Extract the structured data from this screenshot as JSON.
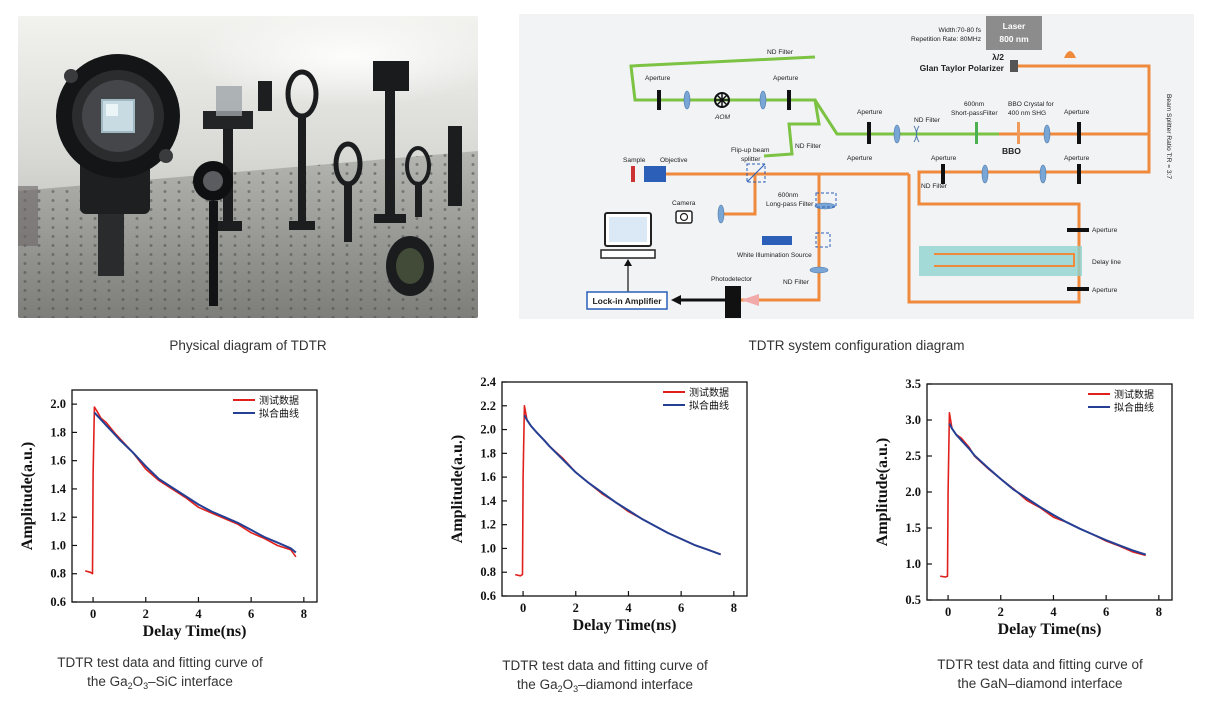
{
  "photo": {
    "caption": "Physical diagram of TDTR"
  },
  "schematic": {
    "caption": "TDTR system configuration diagram",
    "laser_title": "Laser",
    "laser_wavelength": "800 nm",
    "pulse_width": "Width:70-80 fs",
    "repetition_rate": "Repetition Rate:  80MHz",
    "half_wave": "λ/2",
    "glan_taylor": "Glan Taylor Polarizer",
    "beam_splitter_ratio": "Beam Splitter Ratio  T:R = 3:7",
    "nd_filter": "ND Filter",
    "aperture": "Aperture",
    "aom": "AOM",
    "short_pass_line1": "600nm",
    "short_pass_line2": "Short-passFilter",
    "bbo_crystal_line1": "BBO Crystal for",
    "bbo_crystal_line2": "400 nm SHG",
    "bbo": "BBO",
    "sample": "Sample",
    "objective": "Objective",
    "flip_up_line1": "Flip-up beam",
    "flip_up_line2": "splitter",
    "camera": "Camera",
    "long_pass_line1": "600nm",
    "long_pass_line2": "Long-pass Filter",
    "white_illumination": "White Illumination Source",
    "photodetector": "Photodetector",
    "lock_in": "Lock-in Amplifier",
    "delay_line": "Delay line"
  },
  "charts_text": [
    {
      "caption_line1": "TDTR test data and fitting curve of",
      "caption_pre": "the Ga",
      "caption_sub1": "2",
      "caption_mid": "O",
      "caption_sub2": "3",
      "caption_post": "–SiC interface"
    },
    {
      "caption_line1": "TDTR test data and fitting curve of",
      "caption_pre": "the Ga",
      "caption_sub1": "2",
      "caption_mid": "O",
      "caption_sub2": "3",
      "caption_post": "–diamond interface"
    },
    {
      "caption_line1": "TDTR test data and fitting curve of",
      "caption_line2": "the GaN–diamond interface"
    }
  ],
  "colors": {
    "measured": "#e0201c",
    "fitted": "#243f93",
    "pump_beam": "#7cc243",
    "probe_beam": "#ef8a3c",
    "delay_stage": "#8fd3cf"
  },
  "chart_data": [
    {
      "type": "line",
      "xlabel": "Delay Time(ns)",
      "ylabel": "Amplitude(a.u.)",
      "xlim": [
        -0.8,
        8.5
      ],
      "ylim": [
        0.6,
        2.1
      ],
      "xticks": [
        0,
        2,
        4,
        6,
        8
      ],
      "yticks": [
        0.6,
        0.8,
        1.0,
        1.2,
        1.4,
        1.6,
        1.8,
        2.0
      ],
      "ytick_labels": [
        "0.6",
        "0.8",
        "1.0",
        "1.2",
        "1.4",
        "1.6",
        "1.8",
        "2.0"
      ],
      "legend": "top-right",
      "series": [
        {
          "name": "测试数据",
          "x": [
            -0.3,
            -0.1,
            -0.02,
            0.0,
            0.05,
            0.15,
            0.3,
            0.5,
            0.8,
            1.0,
            1.5,
            2.0,
            2.5,
            3.0,
            3.5,
            4.0,
            4.5,
            5.0,
            5.5,
            6.0,
            6.5,
            7.0,
            7.5,
            7.7
          ],
          "y": [
            0.82,
            0.81,
            0.8,
            1.5,
            1.98,
            1.95,
            1.9,
            1.87,
            1.8,
            1.76,
            1.66,
            1.54,
            1.46,
            1.4,
            1.34,
            1.27,
            1.23,
            1.19,
            1.15,
            1.09,
            1.05,
            1.0,
            0.97,
            0.92
          ]
        },
        {
          "name": "拟合曲线",
          "x": [
            0.05,
            0.15,
            0.3,
            0.5,
            0.8,
            1.0,
            1.5,
            2.0,
            2.5,
            3.0,
            3.5,
            4.0,
            4.5,
            5.0,
            5.5,
            6.0,
            6.5,
            7.0,
            7.5,
            7.7
          ],
          "y": [
            1.94,
            1.92,
            1.89,
            1.85,
            1.79,
            1.75,
            1.66,
            1.56,
            1.47,
            1.41,
            1.35,
            1.29,
            1.24,
            1.2,
            1.16,
            1.11,
            1.06,
            1.02,
            0.98,
            0.95
          ]
        }
      ]
    },
    {
      "type": "line",
      "xlabel": "Delay Time(ns)",
      "ylabel": "Amplitude(a.u.)",
      "xlim": [
        -0.8,
        8.5
      ],
      "ylim": [
        0.6,
        2.4
      ],
      "xticks": [
        0,
        2,
        4,
        6,
        8
      ],
      "yticks": [
        0.6,
        0.8,
        1.0,
        1.2,
        1.4,
        1.6,
        1.8,
        2.0,
        2.2,
        2.4
      ],
      "ytick_labels": [
        "0.6",
        "0.8",
        "1.0",
        "1.2",
        "1.4",
        "1.6",
        "1.8",
        "2.0",
        "2.2",
        "2.4"
      ],
      "legend": "top-right",
      "series": [
        {
          "name": "测试数据",
          "x": [
            -0.3,
            -0.1,
            -0.02,
            0.0,
            0.05,
            0.15,
            0.3,
            0.5,
            0.8,
            1.0,
            1.5,
            2.0,
            2.5,
            3.0,
            3.5,
            4.0,
            4.5,
            5.0,
            5.5,
            6.0,
            6.5,
            7.0,
            7.5
          ],
          "y": [
            0.78,
            0.77,
            0.78,
            1.6,
            2.2,
            2.08,
            2.03,
            1.98,
            1.91,
            1.86,
            1.76,
            1.64,
            1.55,
            1.46,
            1.39,
            1.31,
            1.25,
            1.19,
            1.13,
            1.08,
            1.03,
            0.99,
            0.95
          ]
        },
        {
          "name": "拟合曲线",
          "x": [
            0.05,
            0.15,
            0.3,
            0.5,
            0.8,
            1.0,
            1.5,
            2.0,
            2.5,
            3.0,
            3.5,
            4.0,
            4.5,
            5.0,
            5.5,
            6.0,
            6.5,
            7.0,
            7.5
          ],
          "y": [
            2.12,
            2.08,
            2.03,
            1.98,
            1.91,
            1.86,
            1.75,
            1.64,
            1.55,
            1.47,
            1.39,
            1.32,
            1.25,
            1.19,
            1.13,
            1.08,
            1.03,
            0.99,
            0.95
          ]
        }
      ]
    },
    {
      "type": "line",
      "xlabel": "Delay Time(ns)",
      "ylabel": "Amplitude(a.u.)",
      "xlim": [
        -0.8,
        8.5
      ],
      "ylim": [
        0.5,
        3.5
      ],
      "xticks": [
        0,
        2,
        4,
        6,
        8
      ],
      "yticks": [
        0.5,
        1.0,
        1.5,
        2.0,
        2.5,
        3.0,
        3.5
      ],
      "ytick_labels": [
        "0.5",
        "1.0",
        "1.5",
        "2.0",
        "2.5",
        "3.0",
        "3.5"
      ],
      "legend": "top-right",
      "series": [
        {
          "name": "测试数据",
          "x": [
            -0.3,
            -0.1,
            -0.02,
            0.0,
            0.05,
            0.15,
            0.3,
            0.5,
            0.8,
            1.0,
            1.5,
            2.0,
            2.5,
            3.0,
            3.5,
            4.0,
            4.5,
            5.0,
            5.5,
            6.0,
            6.5,
            7.0,
            7.5
          ],
          "y": [
            0.83,
            0.82,
            0.83,
            2.0,
            3.1,
            2.88,
            2.8,
            2.75,
            2.62,
            2.5,
            2.33,
            2.18,
            2.04,
            1.88,
            1.78,
            1.65,
            1.58,
            1.49,
            1.41,
            1.32,
            1.25,
            1.17,
            1.12
          ]
        },
        {
          "name": "拟合曲线",
          "x": [
            0.05,
            0.15,
            0.3,
            0.5,
            0.8,
            1.0,
            1.5,
            2.0,
            2.5,
            3.0,
            3.5,
            4.0,
            4.5,
            5.0,
            5.5,
            6.0,
            6.5,
            7.0,
            7.5
          ],
          "y": [
            2.95,
            2.88,
            2.8,
            2.72,
            2.6,
            2.51,
            2.34,
            2.18,
            2.03,
            1.91,
            1.79,
            1.68,
            1.58,
            1.49,
            1.41,
            1.33,
            1.26,
            1.19,
            1.13
          ]
        }
      ]
    }
  ]
}
